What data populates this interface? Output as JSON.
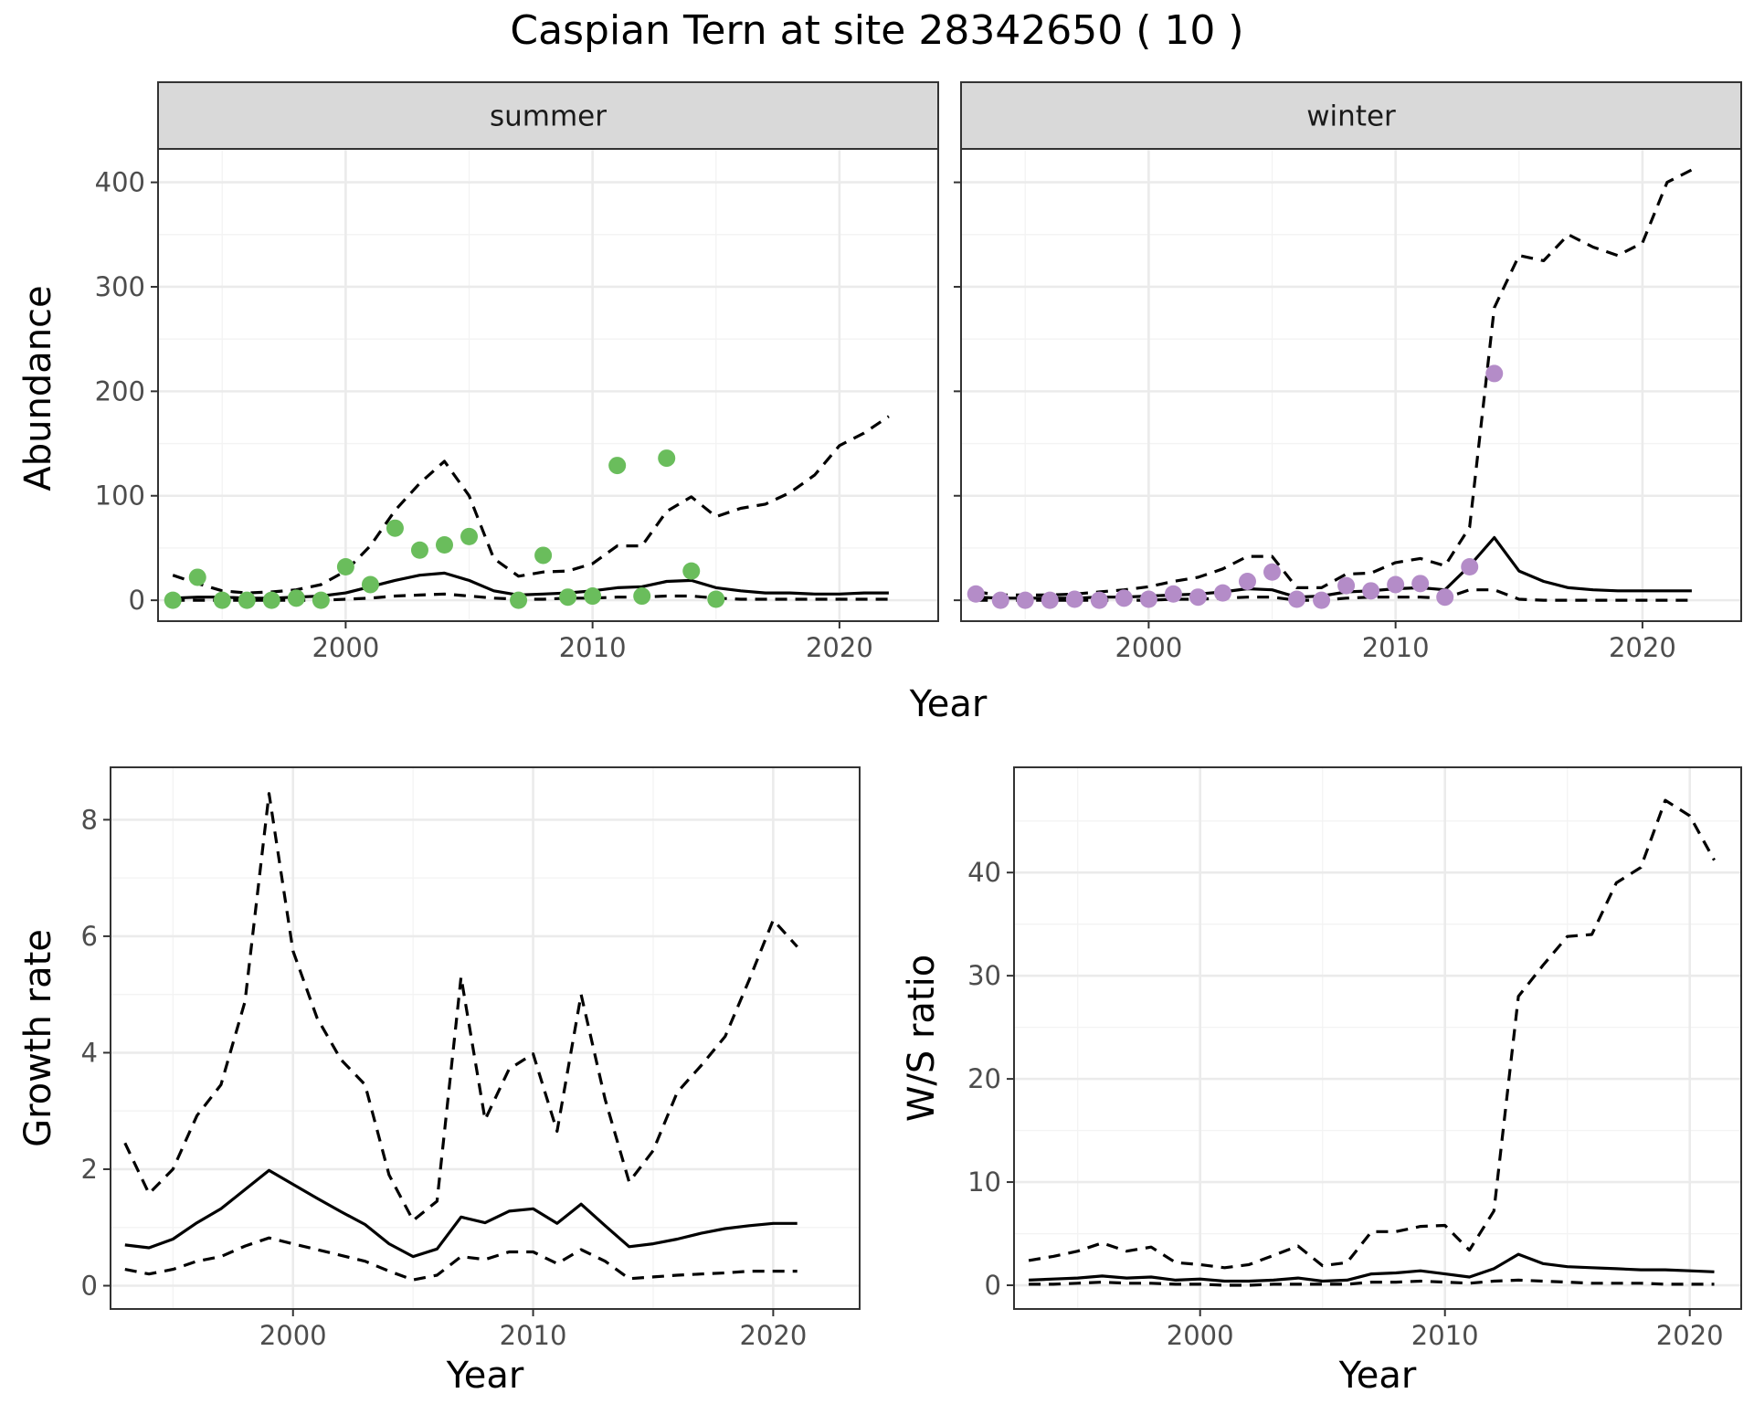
{
  "title": "Caspian Tern at site 28342650 ( 10 )",
  "colors": {
    "summer_points": "#6abd5c",
    "winter_points": "#b48cc8",
    "lines": "#000000"
  },
  "chart_data": [
    {
      "type": "scatter",
      "facet": "summer",
      "xlabel": "Year",
      "ylabel": "Abundance",
      "xlim": [
        1992.4,
        2024.0
      ],
      "ylim": [
        -20,
        432
      ],
      "xticks": [
        2000,
        2010,
        2020
      ],
      "yticks": [
        0,
        100,
        200,
        300,
        400
      ],
      "grid": true,
      "points": {
        "x": [
          1993,
          1994,
          1995,
          1996,
          1997,
          1998,
          1999,
          2000,
          2001,
          2002,
          2003,
          2004,
          2005,
          2007,
          2008,
          2009,
          2010,
          2011,
          2012,
          2013,
          2014,
          2015
        ],
        "y": [
          0,
          22,
          0,
          0,
          0,
          2,
          0,
          32,
          15,
          69,
          48,
          53,
          61,
          0,
          43,
          3,
          4,
          129,
          4,
          136,
          28,
          1
        ]
      },
      "estimate": {
        "x": [
          1993,
          1994,
          1995,
          1996,
          1997,
          1998,
          1999,
          2000,
          2001,
          2002,
          2003,
          2004,
          2005,
          2006,
          2007,
          2008,
          2009,
          2010,
          2011,
          2012,
          2013,
          2014,
          2015,
          2016,
          2017,
          2018,
          2019,
          2020,
          2021,
          2022
        ],
        "y": [
          2,
          3,
          3,
          2,
          2,
          3,
          4,
          7,
          13,
          19,
          24,
          26,
          19,
          9,
          5,
          6,
          7,
          9,
          12,
          13,
          18,
          19,
          12,
          9,
          7,
          7,
          6,
          6,
          7,
          7
        ]
      },
      "lower": {
        "x": [
          1993,
          1994,
          1995,
          1996,
          1997,
          1998,
          1999,
          2000,
          2001,
          2002,
          2003,
          2004,
          2005,
          2006,
          2007,
          2008,
          2009,
          2010,
          2011,
          2012,
          2013,
          2014,
          2015,
          2016,
          2017,
          2018,
          2019,
          2020,
          2021,
          2022
        ],
        "y": [
          0,
          0,
          0,
          0,
          0,
          0,
          0,
          1,
          2,
          4,
          5,
          6,
          4,
          2,
          1,
          1,
          2,
          2,
          3,
          3,
          4,
          4,
          2,
          1,
          1,
          1,
          1,
          1,
          1,
          1
        ]
      },
      "upper": {
        "x": [
          1993,
          1994,
          1995,
          1996,
          1997,
          1998,
          1999,
          2000,
          2001,
          2002,
          2003,
          2004,
          2005,
          2006,
          2007,
          2008,
          2009,
          2010,
          2011,
          2012,
          2013,
          2014,
          2015,
          2016,
          2017,
          2018,
          2019,
          2020,
          2021,
          2022
        ],
        "y": [
          24,
          16,
          9,
          7,
          8,
          10,
          15,
          28,
          52,
          86,
          112,
          133,
          100,
          40,
          23,
          27,
          28,
          35,
          52,
          52,
          85,
          99,
          80,
          88,
          92,
          103,
          120,
          148,
          160,
          176
        ]
      }
    },
    {
      "type": "scatter",
      "facet": "winter",
      "xlabel": "Year",
      "ylabel": "Abundance",
      "xlim": [
        1992.4,
        2024.0
      ],
      "ylim": [
        -20,
        432
      ],
      "xticks": [
        2000,
        2010,
        2020
      ],
      "yticks": [
        0,
        100,
        200,
        300,
        400
      ],
      "grid": true,
      "points": {
        "x": [
          1993,
          1994,
          1995,
          1996,
          1997,
          1998,
          1999,
          2000,
          2001,
          2002,
          2003,
          2004,
          2005,
          2006,
          2007,
          2008,
          2009,
          2010,
          2011,
          2012,
          2013,
          2014
        ],
        "y": [
          6,
          0,
          0,
          0,
          1,
          0,
          2,
          1,
          6,
          3,
          7,
          18,
          27,
          1,
          0,
          14,
          9,
          15,
          16,
          3,
          32,
          217
        ]
      },
      "estimate": {
        "x": [
          1993,
          1994,
          1995,
          1996,
          1997,
          1998,
          1999,
          2000,
          2001,
          2002,
          2003,
          2004,
          2005,
          2006,
          2007,
          2008,
          2009,
          2010,
          2011,
          2012,
          2013,
          2014,
          2015,
          2016,
          2017,
          2018,
          2019,
          2020,
          2021,
          2022
        ],
        "y": [
          3,
          2,
          2,
          2,
          2,
          3,
          3,
          4,
          5,
          6,
          8,
          11,
          10,
          3,
          4,
          8,
          9,
          11,
          12,
          10,
          33,
          60,
          28,
          18,
          12,
          10,
          9,
          9,
          9,
          9
        ]
      },
      "lower": {
        "x": [
          1993,
          1994,
          1995,
          1996,
          1997,
          1998,
          1999,
          2000,
          2001,
          2002,
          2003,
          2004,
          2005,
          2006,
          2007,
          2008,
          2009,
          2010,
          2011,
          2012,
          2013,
          2014,
          2015,
          2016,
          2017,
          2018,
          2019,
          2020,
          2021,
          2022
        ],
        "y": [
          0,
          0,
          0,
          0,
          0,
          0,
          0,
          0,
          1,
          1,
          2,
          3,
          3,
          0,
          0,
          2,
          3,
          3,
          3,
          2,
          10,
          10,
          1,
          0,
          0,
          0,
          0,
          0,
          0,
          0
        ]
      },
      "upper": {
        "x": [
          1993,
          1994,
          1995,
          1996,
          1997,
          1998,
          1999,
          2000,
          2001,
          2002,
          2003,
          2004,
          2005,
          2006,
          2007,
          2008,
          2009,
          2010,
          2011,
          2012,
          2013,
          2014,
          2015,
          2016,
          2017,
          2018,
          2019,
          2020,
          2021,
          2022
        ],
        "y": [
          8,
          5,
          5,
          5,
          6,
          8,
          10,
          13,
          18,
          22,
          30,
          42,
          42,
          12,
          12,
          25,
          26,
          36,
          40,
          33,
          70,
          280,
          330,
          325,
          350,
          338,
          330,
          342,
          400,
          412
        ]
      }
    },
    {
      "type": "line",
      "xlabel": "Year",
      "ylabel": "Growth rate",
      "xlim": [
        1992.4,
        2023.6
      ],
      "ylim": [
        -0.4,
        8.9
      ],
      "xticks": [
        2000,
        2010,
        2020
      ],
      "yticks": [
        0,
        2,
        4,
        6,
        8
      ],
      "grid": true,
      "estimate": {
        "x": [
          1993,
          1994,
          1995,
          1996,
          1997,
          1998,
          1999,
          2000,
          2001,
          2002,
          2003,
          2004,
          2005,
          2006,
          2007,
          2008,
          2009,
          2010,
          2011,
          2012,
          2013,
          2014,
          2015,
          2016,
          2017,
          2018,
          2019,
          2020,
          2021
        ],
        "y": [
          0.7,
          0.65,
          0.8,
          1.08,
          1.32,
          1.65,
          1.98,
          1.74,
          1.5,
          1.27,
          1.05,
          0.72,
          0.5,
          0.63,
          1.18,
          1.08,
          1.28,
          1.32,
          1.07,
          1.4,
          1.03,
          0.67,
          0.72,
          0.8,
          0.9,
          0.98,
          1.03,
          1.07,
          1.07
        ]
      },
      "lower": {
        "x": [
          1993,
          1994,
          1995,
          1996,
          1997,
          1998,
          1999,
          2000,
          2001,
          2002,
          2003,
          2004,
          2005,
          2006,
          2007,
          2008,
          2009,
          2010,
          2011,
          2012,
          2013,
          2014,
          2015,
          2016,
          2017,
          2018,
          2019,
          2020,
          2021
        ],
        "y": [
          0.28,
          0.2,
          0.28,
          0.42,
          0.5,
          0.68,
          0.82,
          0.72,
          0.62,
          0.52,
          0.42,
          0.25,
          0.1,
          0.18,
          0.5,
          0.45,
          0.58,
          0.58,
          0.38,
          0.62,
          0.42,
          0.12,
          0.15,
          0.18,
          0.2,
          0.22,
          0.25,
          0.25,
          0.25
        ]
      },
      "upper": {
        "x": [
          1993,
          1994,
          1995,
          1996,
          1997,
          1998,
          1999,
          2000,
          2001,
          2002,
          2003,
          2004,
          2005,
          2006,
          2007,
          2008,
          2009,
          2010,
          2011,
          2012,
          2013,
          2014,
          2015,
          2016,
          2017,
          2018,
          2019,
          2020,
          2021
        ],
        "y": [
          2.45,
          1.58,
          2.0,
          2.92,
          3.45,
          4.88,
          8.45,
          5.75,
          4.6,
          3.88,
          3.45,
          1.9,
          1.12,
          1.45,
          5.3,
          2.85,
          3.72,
          3.98,
          2.65,
          5.0,
          3.2,
          1.78,
          2.32,
          3.32,
          3.78,
          4.28,
          5.25,
          6.28,
          5.82
        ]
      }
    },
    {
      "type": "line",
      "xlabel": "Year",
      "ylabel": "W/S ratio",
      "xlim": [
        1992.4,
        2022.1
      ],
      "ylim": [
        -2.3,
        50.2
      ],
      "xticks": [
        2000,
        2010,
        2020
      ],
      "yticks": [
        0,
        10,
        20,
        30,
        40
      ],
      "grid": true,
      "estimate": {
        "x": [
          1993,
          1994,
          1995,
          1996,
          1997,
          1998,
          1999,
          2000,
          2001,
          2002,
          2003,
          2004,
          2005,
          2006,
          2007,
          2008,
          2009,
          2010,
          2011,
          2012,
          2013,
          2014,
          2015,
          2016,
          2017,
          2018,
          2019,
          2020,
          2021
        ],
        "y": [
          0.5,
          0.6,
          0.7,
          0.9,
          0.7,
          0.8,
          0.5,
          0.6,
          0.4,
          0.4,
          0.5,
          0.7,
          0.4,
          0.5,
          1.1,
          1.2,
          1.4,
          1.1,
          0.8,
          1.6,
          3.0,
          2.1,
          1.8,
          1.7,
          1.6,
          1.5,
          1.5,
          1.4,
          1.3
        ]
      },
      "lower": {
        "x": [
          1993,
          1994,
          1995,
          1996,
          1997,
          1998,
          1999,
          2000,
          2001,
          2002,
          2003,
          2004,
          2005,
          2006,
          2007,
          2008,
          2009,
          2010,
          2011,
          2012,
          2013,
          2014,
          2015,
          2016,
          2017,
          2018,
          2019,
          2020,
          2021
        ],
        "y": [
          0.1,
          0.1,
          0.2,
          0.3,
          0.2,
          0.2,
          0.1,
          0.1,
          0.0,
          0.0,
          0.1,
          0.1,
          0.1,
          0.1,
          0.3,
          0.3,
          0.4,
          0.3,
          0.2,
          0.4,
          0.5,
          0.4,
          0.3,
          0.2,
          0.2,
          0.2,
          0.1,
          0.1,
          0.1
        ]
      },
      "upper": {
        "x": [
          1993,
          1994,
          1995,
          1996,
          1997,
          1998,
          1999,
          2000,
          2001,
          2002,
          2003,
          2004,
          2005,
          2006,
          2007,
          2008,
          2009,
          2010,
          2011,
          2012,
          2013,
          2014,
          2015,
          2016,
          2017,
          2018,
          2019,
          2020,
          2021
        ],
        "y": [
          2.4,
          2.8,
          3.3,
          4.1,
          3.3,
          3.7,
          2.2,
          2.0,
          1.7,
          2.0,
          2.9,
          3.8,
          1.9,
          2.2,
          5.2,
          5.2,
          5.7,
          5.8,
          3.4,
          7.2,
          28.0,
          31.0,
          33.8,
          34.0,
          39.0,
          40.5,
          47.0,
          45.5,
          41.2
        ]
      }
    }
  ]
}
